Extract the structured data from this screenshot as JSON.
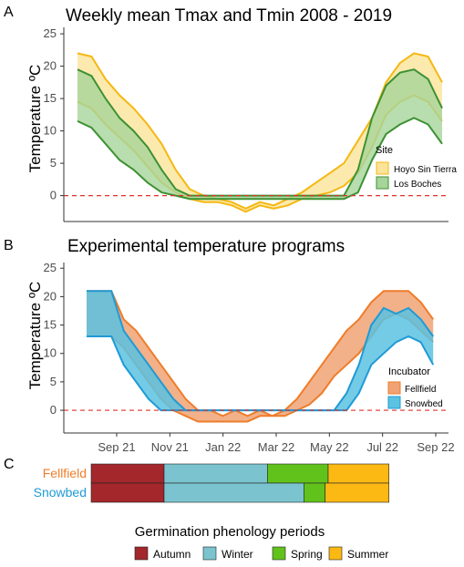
{
  "panels": {
    "a": {
      "label": "A",
      "title": "Weekly mean Tmax and Tmin 2008 - 2019",
      "ylabel": "Temperature ºC",
      "legend_title": "Site"
    },
    "b": {
      "label": "B",
      "title": "Experimental temperature programs",
      "ylabel": "Temperature ºC",
      "legend_title": "Incubator"
    },
    "c": {
      "label": "C"
    },
    "bottom_legend_title": "Germination phenology periods"
  },
  "colors": {
    "hoyo_fill": "#fbe39a",
    "hoyo_line": "#f5b812",
    "boches_fill": "#a6d49a",
    "boches_line": "#3d9133",
    "fellfield_fill": "#f0a374",
    "fellfield_line": "#ee7d2b",
    "snowbed_fill": "#5bc2e2",
    "snowbed_line": "#1f9ad6",
    "overlap": "#6f9199",
    "autumn": "#a3272b",
    "winter": "#7bc4cf",
    "spring": "#62c21c",
    "summer": "#fdb913",
    "zero_line": "#e0322b",
    "fellfield_label": "#ee7d2b",
    "snowbed_label": "#1f9ad6"
  },
  "chart_data": [
    {
      "type": "area",
      "title": "Weekly mean Tmax and Tmin 2008 - 2019",
      "xlabel": "",
      "ylabel": "Temperature ºC",
      "ylim": [
        -4,
        26
      ],
      "xlim": [
        0,
        52
      ],
      "yticks": [
        0,
        5,
        10,
        15,
        20,
        25
      ],
      "grid": false,
      "legend": "right",
      "reference_line": 0,
      "series": [
        {
          "name": "Hoyo Sin Tierra",
          "x": [
            0,
            2,
            4,
            6,
            8,
            10,
            12,
            14,
            16,
            18,
            20,
            22,
            24,
            26,
            28,
            30,
            32,
            34,
            36,
            38,
            40,
            42,
            44,
            46,
            48,
            50,
            52
          ],
          "tmax": [
            22,
            21.5,
            18,
            15.5,
            13.5,
            11,
            8,
            4,
            1,
            0,
            -0.5,
            -1,
            -2,
            -1,
            -1.5,
            -0.5,
            0.5,
            2,
            3.5,
            5,
            8.5,
            12,
            17.5,
            20.5,
            22,
            21.5,
            17.5
          ],
          "tmin": [
            14.5,
            13.5,
            11,
            9,
            7,
            4.5,
            2,
            0.5,
            -0.5,
            -1,
            -1,
            -1.5,
            -2.5,
            -1.5,
            -2,
            -1.5,
            -0.5,
            0,
            0.5,
            1.5,
            3.5,
            7.5,
            12.5,
            14.5,
            15.5,
            14.5,
            11.5
          ]
        },
        {
          "name": "Los Boches",
          "x": [
            0,
            2,
            4,
            6,
            8,
            10,
            12,
            14,
            16,
            18,
            20,
            22,
            24,
            26,
            28,
            30,
            32,
            34,
            36,
            38,
            40,
            42,
            44,
            46,
            48,
            50,
            52
          ],
          "tmax": [
            19.5,
            18.5,
            15,
            12,
            10,
            7.5,
            4,
            1,
            0,
            0,
            0,
            0,
            0,
            0,
            0,
            0,
            0,
            0,
            0,
            0,
            4,
            12,
            17,
            19,
            19.5,
            18,
            13.5
          ],
          "tmin": [
            11.5,
            10.5,
            8,
            5.5,
            4,
            2,
            0.5,
            0,
            -0.5,
            -0.5,
            -0.5,
            -0.5,
            -0.5,
            -0.5,
            -0.5,
            -0.5,
            -0.5,
            -0.5,
            -0.5,
            -0.5,
            0.5,
            5.5,
            9.5,
            11,
            12,
            11,
            8
          ]
        }
      ]
    },
    {
      "type": "area",
      "title": "Experimental temperature programs",
      "xlabel": "",
      "ylabel": "Temperature ºC",
      "ylim": [
        -4,
        26
      ],
      "xlim": [
        0,
        57
      ],
      "xtick_labels": [
        "Sep 21",
        "Nov 21",
        "Jan 22",
        "Mar 22",
        "May 22",
        "Jul 22",
        "Sep 22"
      ],
      "yticks": [
        0,
        5,
        10,
        15,
        20,
        25
      ],
      "grid": false,
      "legend": "right",
      "reference_line": 0,
      "series": [
        {
          "name": "Fellfield",
          "x": [
            0,
            2,
            4,
            6,
            8,
            10,
            12,
            14,
            16,
            18,
            20,
            22,
            24,
            26,
            28,
            30,
            32,
            34,
            36,
            38,
            40,
            42,
            44,
            46,
            48,
            50,
            52,
            54,
            56
          ],
          "tmax": [
            21,
            21,
            21,
            16,
            14,
            11,
            8,
            5,
            2,
            0,
            0,
            -1,
            0,
            -1,
            0,
            -1,
            0,
            2,
            5,
            8,
            11,
            14,
            16,
            19,
            21,
            21,
            21,
            19,
            16
          ],
          "tmin": [
            13,
            13,
            13,
            11,
            8,
            5,
            2,
            0,
            -1,
            -2,
            -2,
            -2,
            -2,
            -2,
            -1,
            -1,
            -1,
            0,
            1,
            3,
            6,
            8,
            10,
            13,
            16,
            17,
            16,
            14,
            12
          ]
        },
        {
          "name": "Snowbed",
          "x": [
            0,
            2,
            4,
            6,
            8,
            10,
            12,
            14,
            16,
            18,
            20,
            22,
            24,
            26,
            28,
            30,
            32,
            34,
            36,
            38,
            40,
            42,
            44,
            46,
            48,
            50,
            52,
            54,
            56
          ],
          "tmax": [
            21,
            21,
            21,
            14,
            11,
            8,
            5,
            2,
            0,
            0,
            0,
            0,
            0,
            0,
            0,
            0,
            0,
            0,
            0,
            0,
            0,
            3,
            8,
            15,
            18,
            17,
            18,
            16,
            13
          ],
          "tmin": [
            13,
            13,
            13,
            8,
            5,
            2,
            0,
            0,
            0,
            0,
            0,
            0,
            0,
            0,
            0,
            0,
            0,
            0,
            0,
            0,
            0,
            0,
            3,
            8,
            10,
            12,
            13,
            12,
            8
          ]
        }
      ]
    },
    {
      "type": "bar",
      "orientation": "horizontal-stacked",
      "xlim": [
        0,
        57
      ],
      "categories": [
        "Fellfield",
        "Snowbed"
      ],
      "series": [
        {
          "name": "Autumn",
          "values": [
            12,
            12
          ]
        },
        {
          "name": "Winter",
          "values": [
            17,
            23
          ]
        },
        {
          "name": "Spring",
          "values": [
            10,
            3.5
          ]
        },
        {
          "name": "Summer",
          "values": [
            10,
            10.5
          ]
        }
      ]
    }
  ]
}
